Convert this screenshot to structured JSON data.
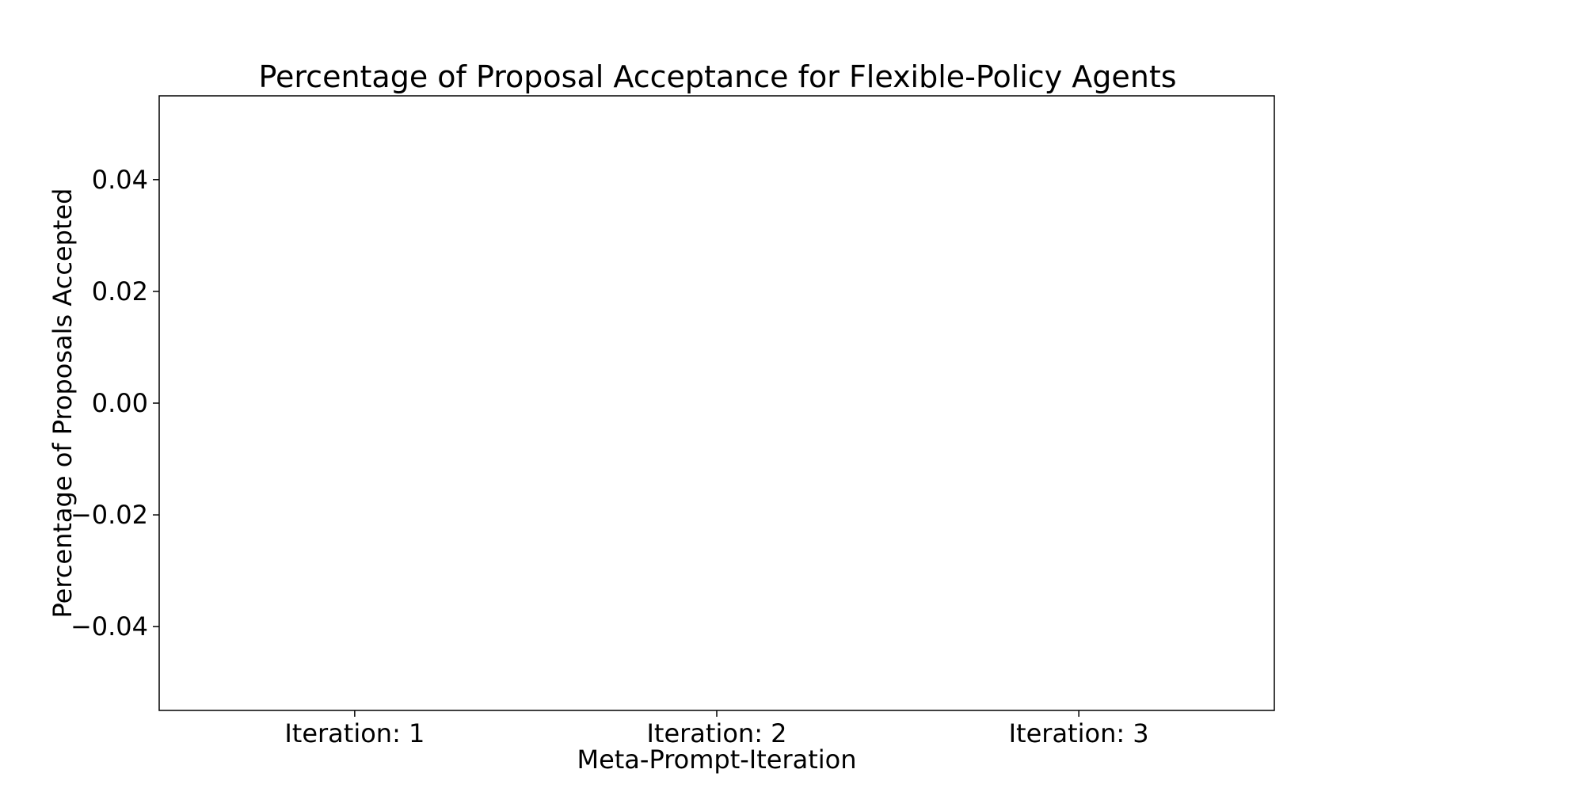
{
  "chart_data": {
    "type": "bar",
    "title": "Percentage of Proposal Acceptance for Flexible-Policy Agents",
    "xlabel": "Meta-Prompt-Iteration",
    "ylabel": "Percentage of Proposals Accepted",
    "categories": [
      "Iteration: 1",
      "Iteration: 2",
      "Iteration: 3"
    ],
    "ylim": [
      -0.055,
      0.055
    ],
    "yticks": [
      -0.04,
      -0.02,
      0.0,
      0.02,
      0.04
    ],
    "ytick_labels": [
      "−0.04",
      "−0.02",
      "0.00",
      "0.02",
      "0.04"
    ],
    "series": [],
    "grid": false,
    "legend": "none"
  }
}
